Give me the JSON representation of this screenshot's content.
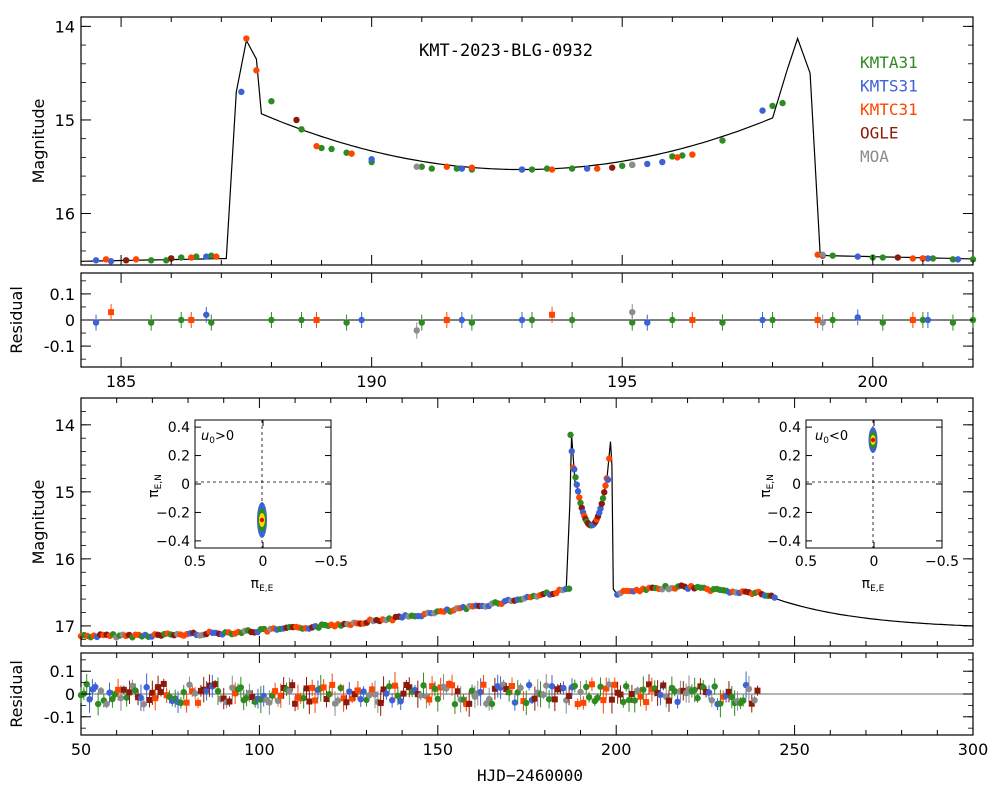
{
  "chart_data": [
    {
      "type": "scatter",
      "panel": "top-lightcurve",
      "title": "KMT-2023-BLG-0932",
      "ylabel": "Magnitude",
      "xlim": [
        184.2,
        202.0
      ],
      "ylim": [
        16.55,
        13.9
      ],
      "yticks": [
        14,
        15,
        16
      ],
      "legend": [
        "KMTA31",
        "KMTS31",
        "KMTC31",
        "OGLE",
        "MOA"
      ],
      "legend_colors": [
        "#2e8b22",
        "#3d62d6",
        "#ff4500",
        "#8b1a0a",
        "#8c8c8c"
      ],
      "series": [
        {
          "name": "KMTA31",
          "color": "#2e8b22",
          "x": [
            185.6,
            185.9,
            186.0,
            186.2,
            186.5,
            186.8,
            188.0,
            188.6,
            189.0,
            189.2,
            189.5,
            190.0,
            191.0,
            191.2,
            191.7,
            192.0,
            193.0,
            193.2,
            193.5,
            194.0,
            195.0,
            195.2,
            196.0,
            196.2,
            197.0,
            198.0,
            198.2,
            199.2,
            200.0,
            200.2,
            201.0,
            201.2,
            201.6,
            202.0
          ],
          "y": [
            16.5,
            16.5,
            16.48,
            16.47,
            16.46,
            16.45,
            14.8,
            15.1,
            15.3,
            15.31,
            15.35,
            15.45,
            15.5,
            15.52,
            15.52,
            15.53,
            15.53,
            15.53,
            15.52,
            15.52,
            15.49,
            15.48,
            15.39,
            15.38,
            15.22,
            14.85,
            14.82,
            16.45,
            16.47,
            16.47,
            16.48,
            16.48,
            16.49,
            16.49
          ]
        },
        {
          "name": "KMTS31",
          "color": "#3d62d6",
          "x": [
            184.5,
            184.8,
            186.7,
            187.4,
            190.0,
            191.8,
            193.0,
            194.3,
            195.5,
            195.8,
            197.8,
            199.7,
            201.1,
            201.7
          ],
          "y": [
            16.5,
            16.51,
            16.46,
            14.7,
            15.42,
            15.52,
            15.53,
            15.52,
            15.47,
            15.45,
            14.9,
            16.46,
            16.48,
            16.49
          ]
        },
        {
          "name": "KMTC31",
          "color": "#ff4500",
          "x": [
            184.7,
            185.3,
            186.4,
            186.9,
            187.5,
            187.7,
            188.9,
            189.6,
            191.5,
            192.0,
            193.6,
            194.5,
            196.1,
            196.4,
            198.9,
            200.8,
            201.0
          ],
          "y": [
            16.49,
            16.49,
            16.47,
            16.46,
            14.13,
            14.47,
            15.28,
            15.36,
            15.5,
            15.51,
            15.53,
            15.52,
            15.4,
            15.37,
            16.44,
            16.48,
            16.48
          ]
        },
        {
          "name": "OGLE",
          "color": "#8b1a0a",
          "x": [
            185.1,
            186.0,
            188.5,
            194.8,
            199.0,
            200.5
          ],
          "y": [
            16.5,
            16.48,
            15.0,
            15.51,
            16.45,
            16.47
          ]
        },
        {
          "name": "MOA",
          "color": "#8c8c8c",
          "x": [
            190.9,
            195.2,
            199.0
          ],
          "y": [
            15.5,
            15.48,
            16.44
          ]
        }
      ]
    },
    {
      "type": "scatter",
      "panel": "top-residual",
      "ylabel": "Residual",
      "xlim": [
        184.2,
        202.0
      ],
      "ylim": [
        -0.18,
        0.18
      ],
      "yticks": [
        "0.1",
        "0",
        "-0.1"
      ],
      "xticks": [
        185,
        190,
        195,
        200
      ],
      "series": [
        {
          "name": "KMTA31",
          "color": "#2e8b22",
          "x": [
            185.6,
            186.2,
            186.8,
            188.0,
            188.6,
            189.5,
            191.0,
            192.0,
            193.2,
            194.0,
            195.2,
            196.0,
            197.0,
            198.0,
            199.2,
            200.2,
            201.0,
            201.6,
            202.0
          ],
          "y": [
            -0.01,
            0.0,
            -0.01,
            0.0,
            0.0,
            -0.01,
            -0.01,
            -0.01,
            0.0,
            0.0,
            -0.01,
            0.0,
            -0.01,
            0.0,
            0.0,
            -0.01,
            0.0,
            -0.01,
            0.0
          ]
        },
        {
          "name": "KMTS31",
          "color": "#3d62d6",
          "x": [
            184.5,
            186.7,
            189.8,
            191.8,
            193.0,
            195.5,
            197.8,
            199.7,
            201.1
          ],
          "y": [
            -0.01,
            0.02,
            0.0,
            0.0,
            0.0,
            -0.01,
            0.0,
            0.01,
            0.0
          ]
        },
        {
          "name": "KMTC31",
          "color": "#ff4500",
          "x": [
            184.8,
            186.4,
            188.9,
            191.5,
            193.6,
            196.4,
            198.9,
            200.8
          ],
          "y": [
            0.03,
            0.0,
            0.0,
            0.0,
            0.02,
            0.0,
            0.0,
            0.0
          ]
        },
        {
          "name": "MOA",
          "color": "#8c8c8c",
          "x": [
            190.9,
            195.2,
            199.0
          ],
          "y": [
            -0.04,
            0.03,
            -0.01
          ]
        }
      ]
    },
    {
      "type": "scatter",
      "panel": "bottom-lightcurve",
      "ylabel": "Magnitude",
      "xlim": [
        50,
        300
      ],
      "ylim": [
        17.3,
        13.6
      ],
      "yticks": [
        14,
        15,
        16,
        17
      ],
      "series_note": "dense baseline data from HJD 50 to 245",
      "model_peaks": [
        {
          "x": 187.5,
          "y": 14.15
        },
        {
          "x": 198.5,
          "y": 14.25
        }
      ]
    },
    {
      "type": "scatter",
      "panel": "bottom-residual",
      "ylabel": "Residual",
      "xlabel": "HJD−2460000",
      "xlim": [
        50,
        300
      ],
      "ylim": [
        -0.18,
        0.18
      ],
      "yticks": [
        "0.1",
        "0",
        "-0.1"
      ],
      "xticks": [
        50,
        100,
        150,
        200,
        250,
        300
      ]
    },
    {
      "type": "scatter",
      "panel": "inset-left",
      "label": "u0>0",
      "xlabel": "πE,E",
      "ylabel": "πE,N",
      "xlim": [
        0.5,
        -0.5
      ],
      "ylim": [
        -0.45,
        0.45
      ],
      "xticks": [
        "0.5",
        "0",
        "−0.5"
      ],
      "yticks": [
        "0.4",
        "0.2",
        "0",
        "−0.2",
        "−0.4"
      ],
      "contour_center": [
        0.02,
        -0.3
      ]
    },
    {
      "type": "scatter",
      "panel": "inset-right",
      "label": "u0<0",
      "xlabel": "πE,E",
      "ylabel": "πE,N",
      "xlim": [
        0.5,
        -0.5
      ],
      "ylim": [
        -0.45,
        0.45
      ],
      "xticks": [
        "0.5",
        "0",
        "−0.5"
      ],
      "yticks": [
        "0.4",
        "0.2",
        "0",
        "−0.2",
        "−0.4"
      ],
      "contour_center": [
        0.0,
        0.3
      ]
    }
  ],
  "labels": {
    "title": "KMT-2023-BLG-0932",
    "magnitude": "Magnitude",
    "residual": "Residual",
    "xlabel": "HJD−2460000",
    "pi_en": "π",
    "pi_en_sub": "E,N",
    "pi_ee": "π",
    "pi_ee_sub": "E,E",
    "u0_pos_base": "u",
    "u0_pos_sub": "0",
    "u0_pos_rel": ">0",
    "u0_neg_rel": "<0"
  },
  "legend": [
    {
      "label": "KMTA31",
      "color": "#2e8b22"
    },
    {
      "label": "KMTS31",
      "color": "#3d62d6"
    },
    {
      "label": "KMTC31",
      "color": "#ff4500"
    },
    {
      "label": "OGLE",
      "color": "#8b1a0a"
    },
    {
      "label": "MOA",
      "color": "#8c8c8c"
    }
  ]
}
